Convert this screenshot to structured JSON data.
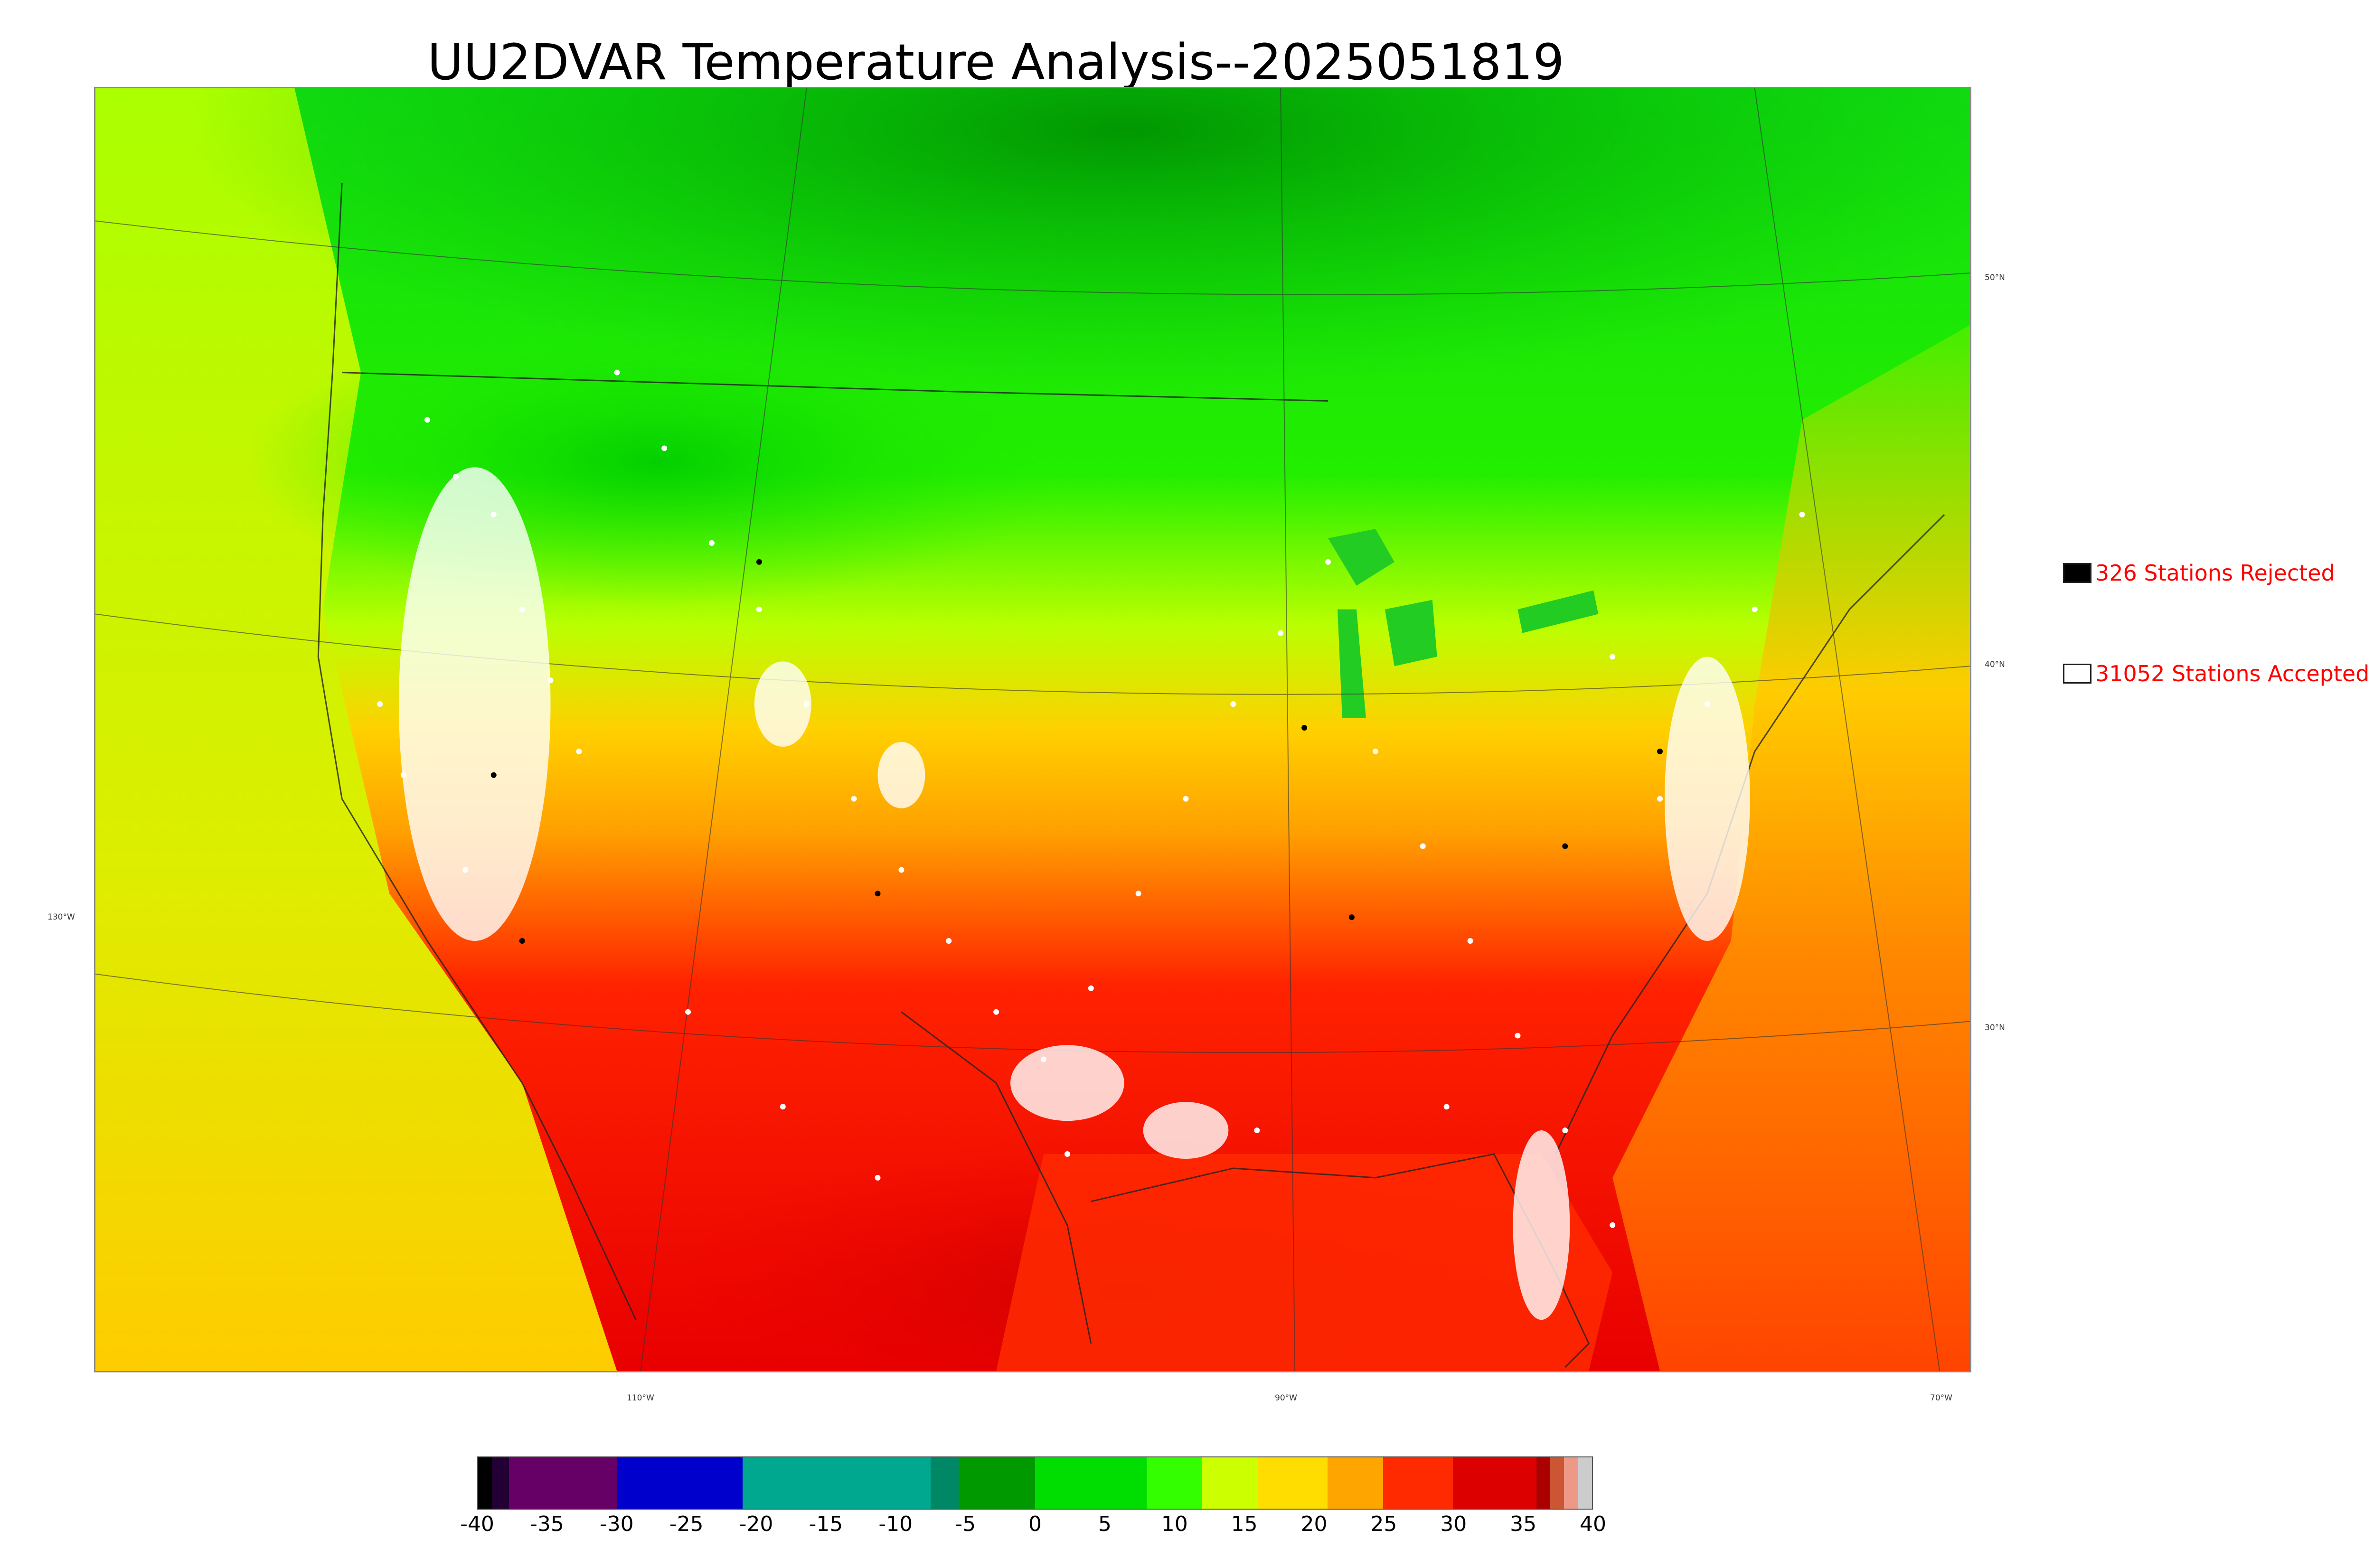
{
  "title": "UU2DVAR Temperature Analysis--2025051819",
  "legend": {
    "rejected": {
      "label": "326 Stations Rejected",
      "swatch_color": "#000000"
    },
    "accepted": {
      "label": "31052 Stations Accepted",
      "swatch_color": "#ffffff"
    }
  },
  "axes": {
    "lat_labels": [
      "50°N",
      "40°N",
      "30°N",
      "130°W"
    ],
    "lon_labels": [
      "110°W",
      "90°W",
      "70°W"
    ]
  },
  "colorbar": {
    "tick_labels": [
      "-40",
      "-35",
      "-30",
      "-25",
      "-20",
      "-15",
      "-10",
      "-5",
      "0",
      "5",
      "10",
      "15",
      "20",
      "25",
      "30",
      "35",
      "40"
    ],
    "range": [
      -40,
      40
    ],
    "segments": [
      {
        "from": -40,
        "to": -39,
        "color": "#000000"
      },
      {
        "from": -39,
        "to": -37.8,
        "color": "#220033"
      },
      {
        "from": -37.8,
        "to": -30,
        "color": "#660066"
      },
      {
        "from": -30,
        "to": -21,
        "color": "#0000cc"
      },
      {
        "from": -21,
        "to": -7.5,
        "color": "#00a890"
      },
      {
        "from": -7.5,
        "to": -5.5,
        "color": "#008866"
      },
      {
        "from": -5.5,
        "to": 0,
        "color": "#009900"
      },
      {
        "from": 0,
        "to": 8,
        "color": "#00dd00"
      },
      {
        "from": 8,
        "to": 12,
        "color": "#33ff00"
      },
      {
        "from": 12,
        "to": 16,
        "color": "#ccff00"
      },
      {
        "from": 16,
        "to": 21,
        "color": "#ffdd00"
      },
      {
        "from": 21,
        "to": 25,
        "color": "#ffa500"
      },
      {
        "from": 25,
        "to": 30,
        "color": "#ff2a00"
      },
      {
        "from": 30,
        "to": 36,
        "color": "#dd0000"
      },
      {
        "from": 36,
        "to": 37,
        "color": "#aa0000"
      },
      {
        "from": 37,
        "to": 38,
        "color": "#cc5533"
      },
      {
        "from": 38,
        "to": 39,
        "color": "#ee9988"
      },
      {
        "from": 39,
        "to": 40,
        "color": "#cccccc"
      }
    ]
  },
  "map_colors": {
    "cold": "#00cc00",
    "cool": "#33ff00",
    "mild": "#ccff00",
    "warm": "#ffcc00",
    "hot": "#ff7700",
    "very_hot": "#ee0000",
    "station_accepted": "#ffffff",
    "station_rejected": "#000000"
  }
}
